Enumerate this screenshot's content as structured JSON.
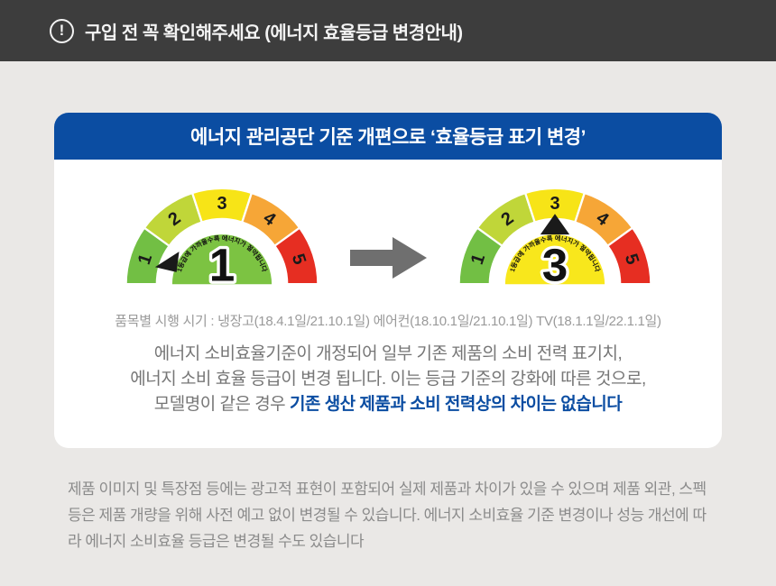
{
  "notice_bar": {
    "icon": "exclamation-circle-icon",
    "icon_glyph": "!",
    "title": "구입 전 꼭 확인해주세요 (에너지 효율등급 변경안내)"
  },
  "card": {
    "header": "에너지 관리공단 기준 개편으로 ‘효율등급 표기 변경’",
    "schedule": "품목별 시행 시기 : 냉장고(18.4.1일/21.10.1일) 에어컨(18.10.1일/21.10.1일) TV(18.1.1일/22.1.1일)",
    "description_line1": "에너지 소비효율기준이 개정되어 일부 기존 제품의 소비 전력 표기치,",
    "description_line2": "에너지 소비 효율 등급이 변경 됩니다. 이는 등급 기준의 강화에 따른 것으로,",
    "description_line3_prefix": "모델명이 같은 경우 ",
    "description_line3_highlight": "기존 생산 제품과 소비 전력상의 차이는 없습니다"
  },
  "footer_note": "제품 이미지 및 특장점 등에는 광고적 표현이 포함되어 실제 제품과 차이가 있을 수 있으며 제품 외관, 스펙 등은 제품 개량을 위해 사전 예고 없이 변경될 수 있습니다.  에너지 소비효율 기준 변경이나 성능 개선에 따라 에너지 소비효율 등급은 변경될 수도 있습니다",
  "colors": {
    "bar_bg": "#3d3d3d",
    "page_bg": "#eae8e6",
    "accent_blue": "#0b4da2",
    "arrow_gray": "#6f6f6f",
    "pointer_black": "#1a1a1a"
  },
  "chart_data": {
    "type": "gauge",
    "title": "에너지 효율등급 표기 변경 (1등급 → 3등급 표기 예시)",
    "gauges": [
      {
        "id": "before",
        "name": "gauge-before",
        "labels": [
          "1",
          "2",
          "3",
          "4",
          "5"
        ],
        "segment_colors": [
          "#72bf44",
          "#c0d639",
          "#f7e417",
          "#f6a637",
          "#e62e22"
        ],
        "inner_color": "#7cc342",
        "value": "1",
        "curved_text": "1등급에 가까울수록 에너지가 절약됩니다",
        "pointer_segment": 1,
        "pointer_direction": "left"
      },
      {
        "id": "after",
        "name": "gauge-after",
        "labels": [
          "1",
          "2",
          "3",
          "4",
          "5"
        ],
        "segment_colors": [
          "#72bf44",
          "#c0d639",
          "#f7e417",
          "#f6a637",
          "#e62e22"
        ],
        "inner_color": "#f8e71c",
        "value": "3",
        "curved_text": "1등급에 가까울수록 에너지가 절약됩니다",
        "pointer_segment": 3,
        "pointer_direction": "up"
      }
    ]
  }
}
